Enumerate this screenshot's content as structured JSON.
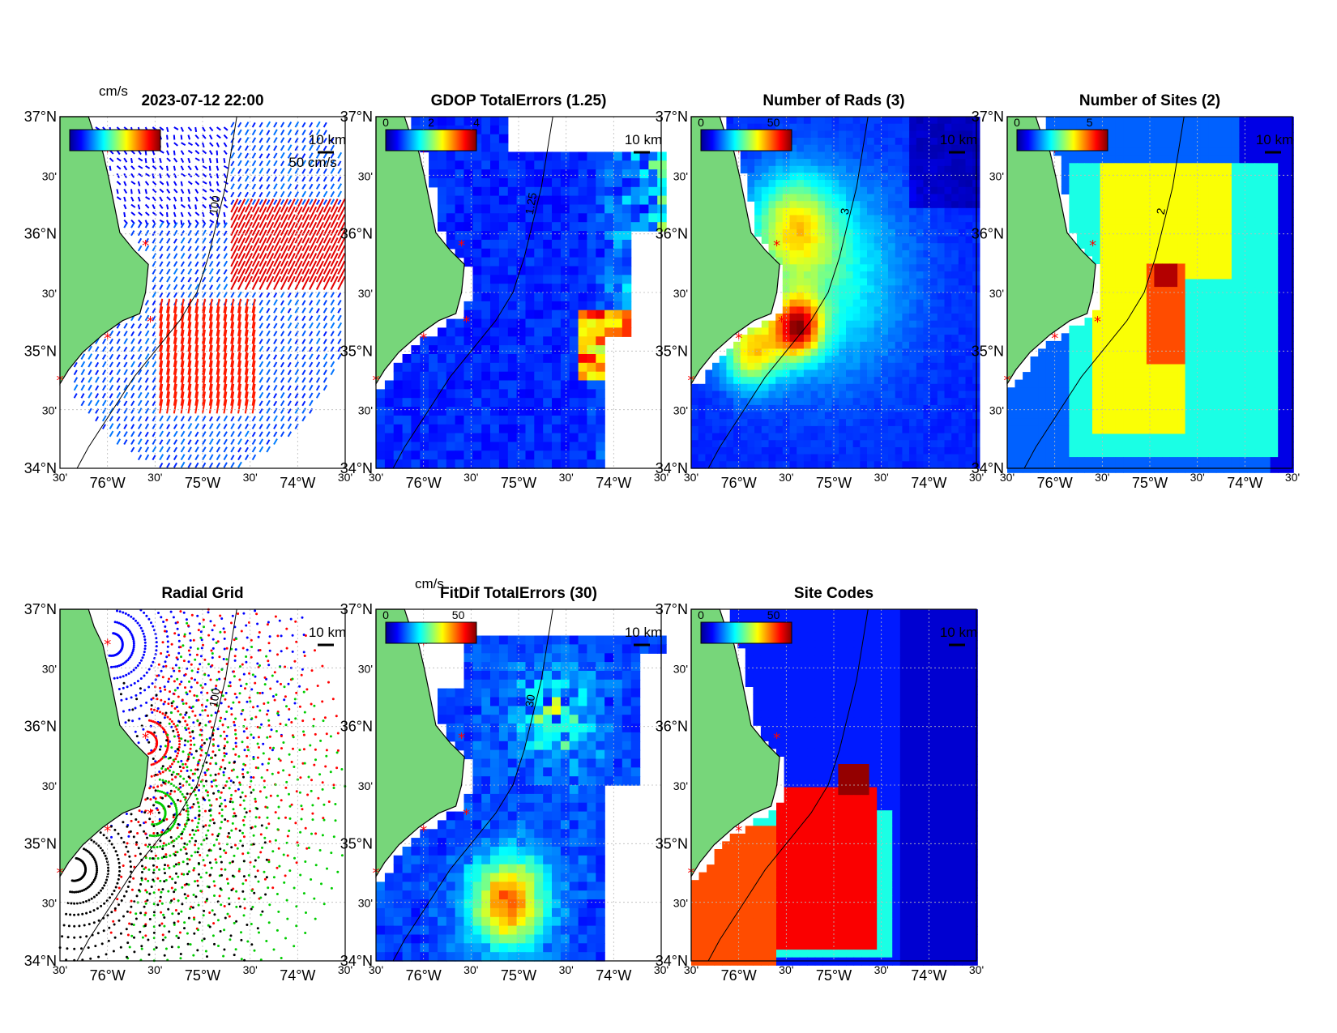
{
  "figure": {
    "panels": [
      {
        "id": "currents",
        "title": "2023-07-12 22:00",
        "row": 0,
        "col": 0,
        "kind": "vectors",
        "colorbar": {
          "unit": "cm/s",
          "ticks": [],
          "show": true
        },
        "vector_scale_label": "50 cm/s",
        "scale_bar": "10 km",
        "contour_label": "100"
      },
      {
        "id": "gdop",
        "title": "GDOP TotalErrors (1.25)",
        "row": 0,
        "col": 1,
        "kind": "field",
        "colorbar": {
          "unit": "",
          "ticks": [
            "0",
            "2",
            "4"
          ],
          "show": true
        },
        "scale_bar": "10 km",
        "contour_label": "1.25"
      },
      {
        "id": "nrads",
        "title": "Number of Rads (3)",
        "row": 0,
        "col": 2,
        "kind": "field",
        "colorbar": {
          "unit": "",
          "ticks": [
            "0",
            "50"
          ],
          "show": true
        },
        "scale_bar": "10 km",
        "contour_label": "3"
      },
      {
        "id": "nsites",
        "title": "Number of Sites (2)",
        "row": 0,
        "col": 3,
        "kind": "sites",
        "colorbar": {
          "unit": "",
          "ticks": [
            "0",
            "5"
          ],
          "show": true
        },
        "scale_bar": "10 km",
        "contour_label": "2"
      },
      {
        "id": "radgrid",
        "title": "Radial Grid",
        "row": 1,
        "col": 0,
        "kind": "radial",
        "colorbar": {
          "unit": "",
          "ticks": [],
          "show": false
        },
        "scale_bar": "10 km",
        "contour_label": "100"
      },
      {
        "id": "fitdif",
        "title": "FitDif TotalErrors (30)",
        "row": 1,
        "col": 1,
        "kind": "fitdif",
        "colorbar": {
          "unit": "cm/s",
          "ticks": [
            "0",
            "50"
          ],
          "show": true
        },
        "scale_bar": "10 km",
        "contour_label": "30"
      },
      {
        "id": "sitecodes",
        "title": "Site Codes",
        "row": 1,
        "col": 2,
        "kind": "codes",
        "colorbar": {
          "unit": "",
          "ticks": [
            "0",
            "50"
          ],
          "show": true
        },
        "scale_bar": "10 km",
        "contour_label": ""
      }
    ],
    "axes": {
      "lat_labels": [
        {
          "lat": 37.0,
          "text": "37°N"
        },
        {
          "lat": 36.5,
          "text": "30'"
        },
        {
          "lat": 36.0,
          "text": "36°N"
        },
        {
          "lat": 35.5,
          "text": "30'"
        },
        {
          "lat": 35.0,
          "text": "35°N"
        },
        {
          "lat": 34.5,
          "text": "30'"
        },
        {
          "lat": 34.0,
          "text": "34°N"
        }
      ],
      "lon_labels": [
        {
          "lon": -76.5,
          "text": "30'"
        },
        {
          "lon": -76.0,
          "text": "76°W"
        },
        {
          "lon": -75.5,
          "text": "30'"
        },
        {
          "lon": -75.0,
          "text": "75°W"
        },
        {
          "lon": -74.5,
          "text": "30'"
        },
        {
          "lon": -74.0,
          "text": "74°W"
        },
        {
          "lon": -73.5,
          "text": "30'"
        }
      ],
      "lon_range": [
        -76.5,
        -73.5
      ],
      "lat_range": [
        34.0,
        37.0
      ]
    },
    "stations": [
      {
        "lon": -76.0,
        "lat": 36.7
      },
      {
        "lon": -75.6,
        "lat": 35.9
      },
      {
        "lon": -75.55,
        "lat": 35.25
      },
      {
        "lon": -76.0,
        "lat": 35.11
      },
      {
        "lon": -76.5,
        "lat": 34.75
      }
    ],
    "colors": {
      "land": "#77d67a",
      "coast": "#000000",
      "station": "#ff0000",
      "grid": "#bbbbbb",
      "radial_sites": [
        "#0000ff",
        "#ff0000",
        "#00cc00",
        "#000000"
      ]
    }
  }
}
